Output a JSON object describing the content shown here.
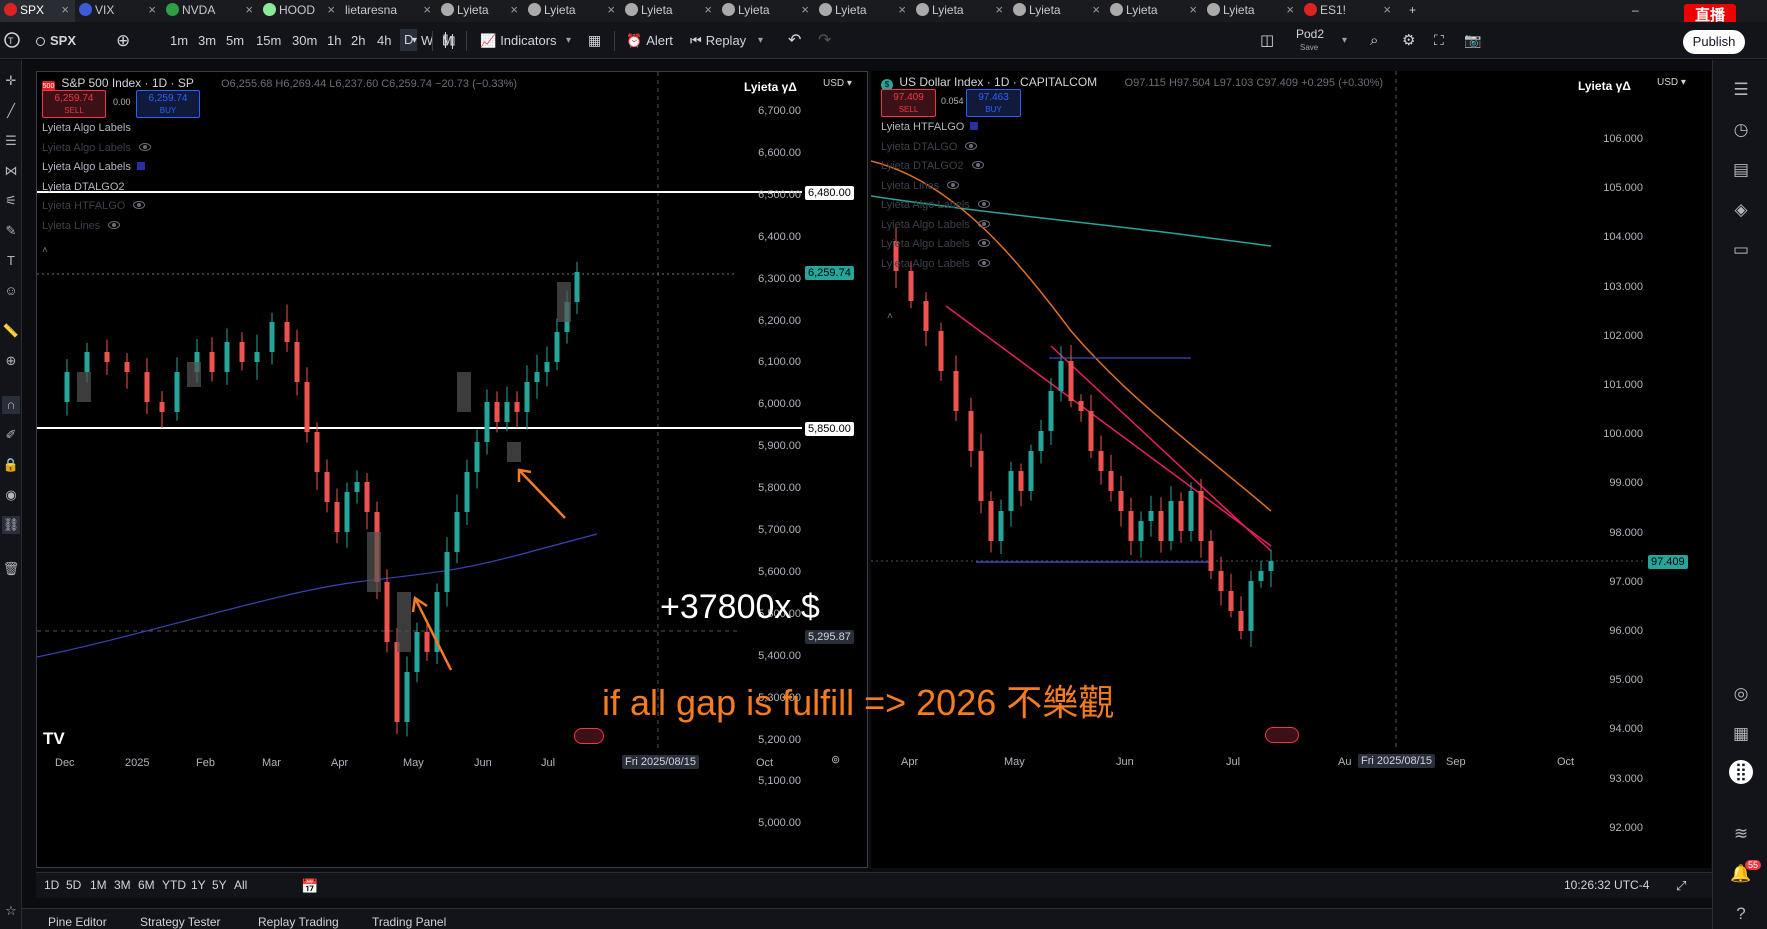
{
  "browser_tabs": [
    {
      "label": "SPX",
      "icon_color": "#d22",
      "active": true
    },
    {
      "label": "VIX",
      "icon_color": "#3b5bdb"
    },
    {
      "label": "NVDA",
      "icon_color": "#2f9e44"
    },
    {
      "label": "HOOD",
      "icon_color": "#8ce99a"
    },
    {
      "label": "lietaresna",
      "icon_color": ""
    },
    {
      "label": "Lyieta",
      "icon_color": "#aaa"
    },
    {
      "label": "Lyieta",
      "icon_color": "#aaa"
    },
    {
      "label": "Lyieta",
      "icon_color": "#aaa"
    },
    {
      "label": "Lyieta",
      "icon_color": "#aaa"
    },
    {
      "label": "Lyieta",
      "icon_color": "#aaa"
    },
    {
      "label": "Lyieta",
      "icon_color": "#aaa"
    },
    {
      "label": "Lyieta",
      "icon_color": "#aaa"
    },
    {
      "label": "Lyieta",
      "icon_color": "#aaa"
    },
    {
      "label": "Lyieta",
      "icon_color": "#aaa"
    },
    {
      "label": "ES1!",
      "icon_color": "#d22"
    }
  ],
  "live_badge": "直播",
  "toolbar": {
    "symbol": "SPX",
    "intervals": [
      "1m",
      "3m",
      "5m",
      "15m",
      "30m",
      "1h",
      "2h",
      "4h",
      "D",
      "W",
      "M"
    ],
    "active_interval": "D",
    "indicators_label": "Indicators",
    "alert_label": "Alert",
    "replay_label": "Replay",
    "layout_name": "Pod2",
    "layout_sub": "Save",
    "publish_label": "Publish"
  },
  "left_pane": {
    "title": "S&P 500 Index · 1D · SP",
    "ohlc": "O6,255.68 H6,269.44 L6,237.60 C6,259.74 −20.73 (−0.33%)",
    "sell_price": "6,259.74",
    "sell_label": "SELL",
    "spread": "0.00",
    "buy_price": "6,259.74",
    "buy_label": "BUY",
    "brand": "Lyieta γΔ",
    "currency": "USD",
    "indicators": [
      {
        "label": "Lyieta Algo Labels",
        "dim": false,
        "eye": false
      },
      {
        "label": "Lyieta Algo Labels",
        "dim": true,
        "eye": true
      },
      {
        "label": "Lyieta Algo Labels",
        "dim": false,
        "eye": false
      },
      {
        "label": "Lyieta DTALGO2",
        "dim": false,
        "eye": false
      },
      {
        "label": "Lyieta HTFALGO",
        "dim": true,
        "eye": true
      },
      {
        "label": "Lyieta Lines",
        "dim": true,
        "eye": true
      }
    ],
    "y_ticks": [
      "6,700.00",
      "6,600.00",
      "6,500.00",
      "6,400.00",
      "6,300.00",
      "6,200.00",
      "6,100.00",
      "6,000.00",
      "5,900.00",
      "5,800.00",
      "5,700.00",
      "5,600.00",
      "5,500.00",
      "5,400.00",
      "5,300.00",
      "5,200.00",
      "5,100.00",
      "5,000.00"
    ],
    "x_ticks": [
      "Dec",
      "2025",
      "Feb",
      "Mar",
      "Apr",
      "May",
      "Jun",
      "Jul",
      "Oct"
    ],
    "crosshair_date": "Fri 2025/08/15",
    "level_high": "6,480.00",
    "level_low": "5,850.00",
    "last_price": "6,259.74",
    "cursor_price": "5,295.87"
  },
  "right_pane": {
    "title": "US Dollar Index · 1D · CAPITALCOM",
    "ohlc": "O97.115 H97.504 L97.103 C97.409 +0.295 (+0.30%)",
    "sell_price": "97.409",
    "sell_label": "SELL",
    "spread": "0.054",
    "buy_price": "97.463",
    "buy_label": "BUY",
    "brand": "Lyieta γΔ",
    "currency": "USD",
    "indicators": [
      {
        "label": "Lyieta HTFALGO",
        "dim": false,
        "eye": false
      },
      {
        "label": "Lyieta DTALGO",
        "dim": true,
        "eye": true
      },
      {
        "label": "Lyieta DTALGO2",
        "dim": true,
        "eye": true
      },
      {
        "label": "Lyieta Lines",
        "dim": true,
        "eye": true
      },
      {
        "label": "Lyieta Algo Labels",
        "dim": true,
        "eye": true
      },
      {
        "label": "Lyieta Algo Labels",
        "dim": true,
        "eye": true
      },
      {
        "label": "Lyieta Algo Labels",
        "dim": true,
        "eye": true
      },
      {
        "label": "Lyieta Algo Labels",
        "dim": true,
        "eye": true
      }
    ],
    "y_ticks": [
      "106.000",
      "105.000",
      "104.000",
      "103.000",
      "102.000",
      "101.000",
      "100.000",
      "99.000",
      "98.000",
      "97.000",
      "96.000",
      "95.000",
      "94.000",
      "93.000",
      "92.000"
    ],
    "x_ticks": [
      "Apr",
      "May",
      "Jun",
      "Jul",
      "Au",
      "Sep",
      "Oct"
    ],
    "crosshair_date": "Fri 2025/08/15",
    "last_price": "97.409"
  },
  "overlays": {
    "multiplier_text": "+37800x",
    "multiplier_suffix": "$",
    "comment_text": "if all gap is fulfill => 2026 不樂觀"
  },
  "range_bar": {
    "ranges": [
      "1D",
      "5D",
      "1M",
      "3M",
      "6M",
      "YTD",
      "1Y",
      "5Y",
      "All"
    ],
    "clock": "10:26:32 UTC-4"
  },
  "bottom_tabs": [
    "Pine Editor",
    "Strategy Tester",
    "Replay Trading",
    "Trading Panel"
  ],
  "notification_count": "55",
  "colors": {
    "sell": "#f23645",
    "buy": "#2962ff",
    "up": "#26a69a",
    "down": "#ef5350",
    "annotation": "#f57c1f",
    "pink_trend": "#e91e63"
  }
}
